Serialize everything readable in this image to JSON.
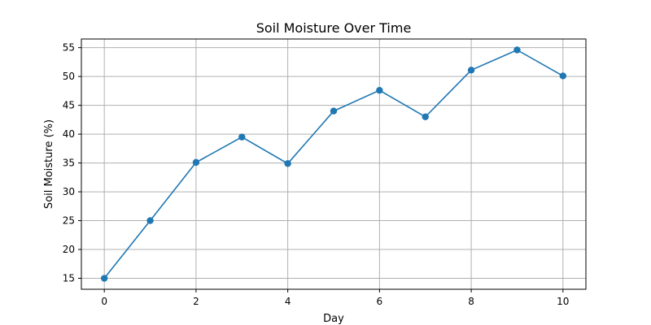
{
  "chart_data": {
    "type": "line",
    "title": "Soil Moisture Over Time",
    "xlabel": "Day",
    "ylabel": "Soil Moisture (%)",
    "x": [
      0,
      1,
      2,
      3,
      4,
      5,
      6,
      7,
      8,
      9,
      10
    ],
    "series": [
      {
        "values": [
          15.0,
          25.0,
          35.1,
          39.5,
          34.9,
          44.0,
          47.6,
          43.0,
          51.1,
          54.6,
          50.1
        ],
        "color": "#1f77b4",
        "marker": "circle"
      }
    ],
    "xlim": [
      -0.5,
      10.5
    ],
    "ylim": [
      13.1,
      56.5
    ],
    "xticks": [
      0,
      2,
      4,
      6,
      8,
      10
    ],
    "yticks": [
      15,
      20,
      25,
      30,
      35,
      40,
      45,
      50,
      55
    ],
    "grid": true,
    "legend": "none"
  }
}
